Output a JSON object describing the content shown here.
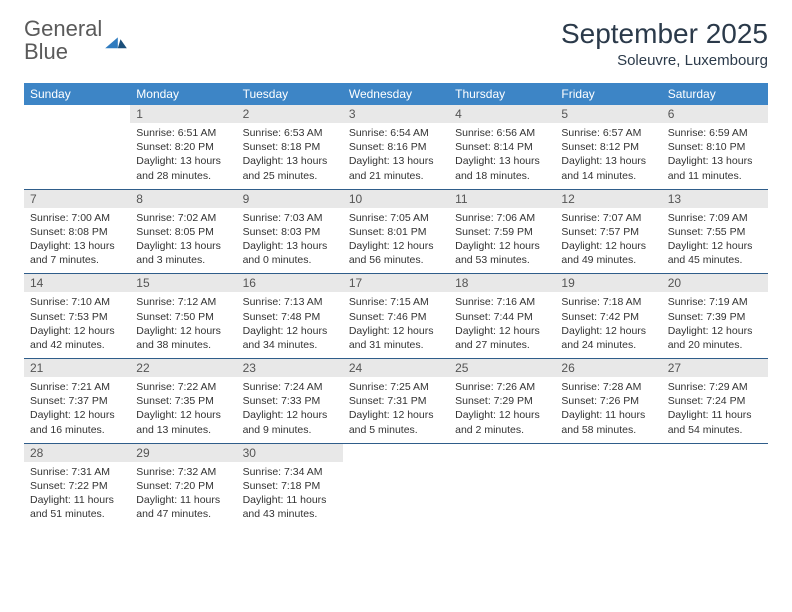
{
  "logo": {
    "text1": "General",
    "text2": "Blue"
  },
  "title": "September 2025",
  "location": "Soleuvre, Luxembourg",
  "header_bg": "#3d85c6",
  "daynum_bg": "#e8e8e8",
  "row_border": "#2f5d8a",
  "weekdays": [
    "Sunday",
    "Monday",
    "Tuesday",
    "Wednesday",
    "Thursday",
    "Friday",
    "Saturday"
  ],
  "weeks": [
    [
      {
        "empty": true
      },
      {
        "n": "1",
        "sr": "Sunrise: 6:51 AM",
        "ss": "Sunset: 8:20 PM",
        "dl": "Daylight: 13 hours and 28 minutes."
      },
      {
        "n": "2",
        "sr": "Sunrise: 6:53 AM",
        "ss": "Sunset: 8:18 PM",
        "dl": "Daylight: 13 hours and 25 minutes."
      },
      {
        "n": "3",
        "sr": "Sunrise: 6:54 AM",
        "ss": "Sunset: 8:16 PM",
        "dl": "Daylight: 13 hours and 21 minutes."
      },
      {
        "n": "4",
        "sr": "Sunrise: 6:56 AM",
        "ss": "Sunset: 8:14 PM",
        "dl": "Daylight: 13 hours and 18 minutes."
      },
      {
        "n": "5",
        "sr": "Sunrise: 6:57 AM",
        "ss": "Sunset: 8:12 PM",
        "dl": "Daylight: 13 hours and 14 minutes."
      },
      {
        "n": "6",
        "sr": "Sunrise: 6:59 AM",
        "ss": "Sunset: 8:10 PM",
        "dl": "Daylight: 13 hours and 11 minutes."
      }
    ],
    [
      {
        "n": "7",
        "sr": "Sunrise: 7:00 AM",
        "ss": "Sunset: 8:08 PM",
        "dl": "Daylight: 13 hours and 7 minutes."
      },
      {
        "n": "8",
        "sr": "Sunrise: 7:02 AM",
        "ss": "Sunset: 8:05 PM",
        "dl": "Daylight: 13 hours and 3 minutes."
      },
      {
        "n": "9",
        "sr": "Sunrise: 7:03 AM",
        "ss": "Sunset: 8:03 PM",
        "dl": "Daylight: 13 hours and 0 minutes."
      },
      {
        "n": "10",
        "sr": "Sunrise: 7:05 AM",
        "ss": "Sunset: 8:01 PM",
        "dl": "Daylight: 12 hours and 56 minutes."
      },
      {
        "n": "11",
        "sr": "Sunrise: 7:06 AM",
        "ss": "Sunset: 7:59 PM",
        "dl": "Daylight: 12 hours and 53 minutes."
      },
      {
        "n": "12",
        "sr": "Sunrise: 7:07 AM",
        "ss": "Sunset: 7:57 PM",
        "dl": "Daylight: 12 hours and 49 minutes."
      },
      {
        "n": "13",
        "sr": "Sunrise: 7:09 AM",
        "ss": "Sunset: 7:55 PM",
        "dl": "Daylight: 12 hours and 45 minutes."
      }
    ],
    [
      {
        "n": "14",
        "sr": "Sunrise: 7:10 AM",
        "ss": "Sunset: 7:53 PM",
        "dl": "Daylight: 12 hours and 42 minutes."
      },
      {
        "n": "15",
        "sr": "Sunrise: 7:12 AM",
        "ss": "Sunset: 7:50 PM",
        "dl": "Daylight: 12 hours and 38 minutes."
      },
      {
        "n": "16",
        "sr": "Sunrise: 7:13 AM",
        "ss": "Sunset: 7:48 PM",
        "dl": "Daylight: 12 hours and 34 minutes."
      },
      {
        "n": "17",
        "sr": "Sunrise: 7:15 AM",
        "ss": "Sunset: 7:46 PM",
        "dl": "Daylight: 12 hours and 31 minutes."
      },
      {
        "n": "18",
        "sr": "Sunrise: 7:16 AM",
        "ss": "Sunset: 7:44 PM",
        "dl": "Daylight: 12 hours and 27 minutes."
      },
      {
        "n": "19",
        "sr": "Sunrise: 7:18 AM",
        "ss": "Sunset: 7:42 PM",
        "dl": "Daylight: 12 hours and 24 minutes."
      },
      {
        "n": "20",
        "sr": "Sunrise: 7:19 AM",
        "ss": "Sunset: 7:39 PM",
        "dl": "Daylight: 12 hours and 20 minutes."
      }
    ],
    [
      {
        "n": "21",
        "sr": "Sunrise: 7:21 AM",
        "ss": "Sunset: 7:37 PM",
        "dl": "Daylight: 12 hours and 16 minutes."
      },
      {
        "n": "22",
        "sr": "Sunrise: 7:22 AM",
        "ss": "Sunset: 7:35 PM",
        "dl": "Daylight: 12 hours and 13 minutes."
      },
      {
        "n": "23",
        "sr": "Sunrise: 7:24 AM",
        "ss": "Sunset: 7:33 PM",
        "dl": "Daylight: 12 hours and 9 minutes."
      },
      {
        "n": "24",
        "sr": "Sunrise: 7:25 AM",
        "ss": "Sunset: 7:31 PM",
        "dl": "Daylight: 12 hours and 5 minutes."
      },
      {
        "n": "25",
        "sr": "Sunrise: 7:26 AM",
        "ss": "Sunset: 7:29 PM",
        "dl": "Daylight: 12 hours and 2 minutes."
      },
      {
        "n": "26",
        "sr": "Sunrise: 7:28 AM",
        "ss": "Sunset: 7:26 PM",
        "dl": "Daylight: 11 hours and 58 minutes."
      },
      {
        "n": "27",
        "sr": "Sunrise: 7:29 AM",
        "ss": "Sunset: 7:24 PM",
        "dl": "Daylight: 11 hours and 54 minutes."
      }
    ],
    [
      {
        "n": "28",
        "sr": "Sunrise: 7:31 AM",
        "ss": "Sunset: 7:22 PM",
        "dl": "Daylight: 11 hours and 51 minutes."
      },
      {
        "n": "29",
        "sr": "Sunrise: 7:32 AM",
        "ss": "Sunset: 7:20 PM",
        "dl": "Daylight: 11 hours and 47 minutes."
      },
      {
        "n": "30",
        "sr": "Sunrise: 7:34 AM",
        "ss": "Sunset: 7:18 PM",
        "dl": "Daylight: 11 hours and 43 minutes."
      },
      {
        "empty": true
      },
      {
        "empty": true
      },
      {
        "empty": true
      },
      {
        "empty": true
      }
    ]
  ]
}
